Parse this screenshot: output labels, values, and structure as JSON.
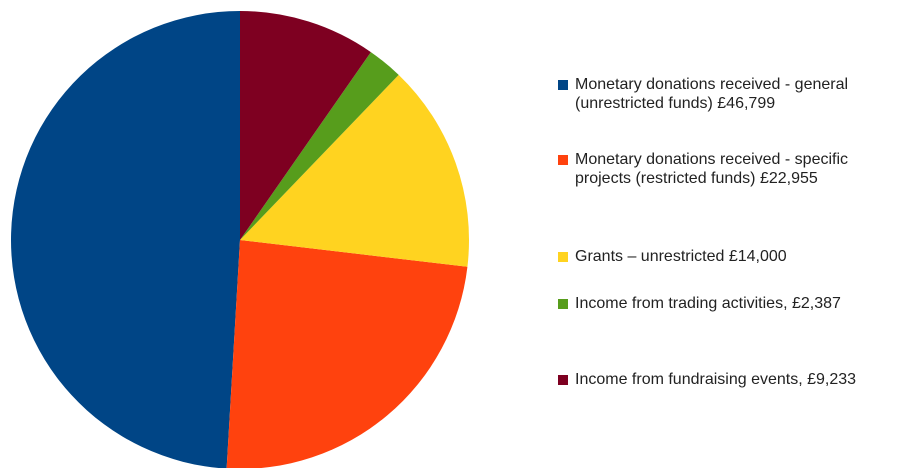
{
  "chart_data": {
    "type": "pie",
    "categories": [
      "Monetary donations received - general (unrestricted funds) £46,799",
      "Monetary donations received - specific projects (restricted funds) £22,955",
      "Grants – unrestricted £14,000",
      "Income from trading activities, £2,387",
      "Income from fundraising events, £9,233"
    ],
    "values": [
      46799,
      22955,
      14000,
      2387,
      9233
    ],
    "colors": [
      "#004586",
      "#ff420e",
      "#ffd320",
      "#579d1c",
      "#7e0021"
    ],
    "legend": "right"
  }
}
